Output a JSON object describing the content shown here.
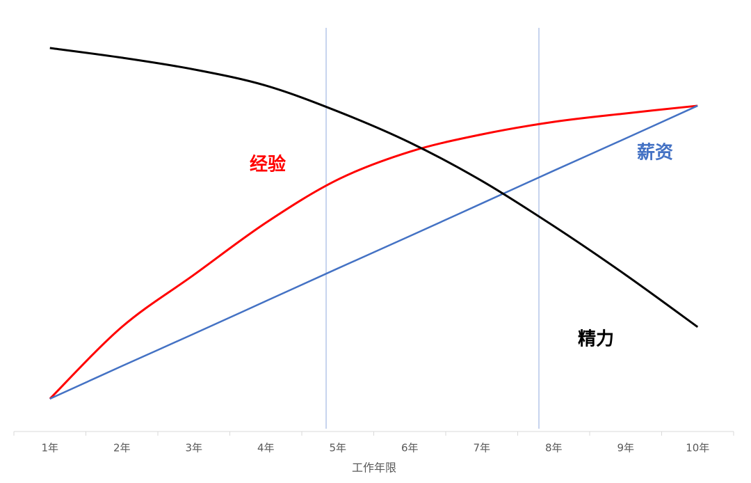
{
  "chart_data": {
    "type": "line",
    "x_label": "工作年限",
    "categories": [
      "1年",
      "2年",
      "3年",
      "4年",
      "5年",
      "6年",
      "7年",
      "8年",
      "9年",
      "10年"
    ],
    "ylim": [
      0,
      100
    ],
    "series": [
      {
        "name": "经验",
        "color": "#ff0000",
        "values": [
          8.1,
          25.9,
          38.8,
          51.7,
          62.4,
          69.3,
          73.6,
          76.7,
          78.8,
          80.7
        ]
      },
      {
        "name": "薪资",
        "color": "#4472c4",
        "values": [
          8.1,
          16.2,
          24.2,
          32.3,
          40.4,
          48.4,
          56.5,
          64.6,
          72.6,
          80.7
        ]
      },
      {
        "name": "精力",
        "color": "#000000",
        "values": [
          95,
          92.6,
          89.7,
          85.7,
          79.3,
          71.6,
          62.1,
          50.9,
          38.8,
          25.9
        ]
      }
    ]
  }
}
